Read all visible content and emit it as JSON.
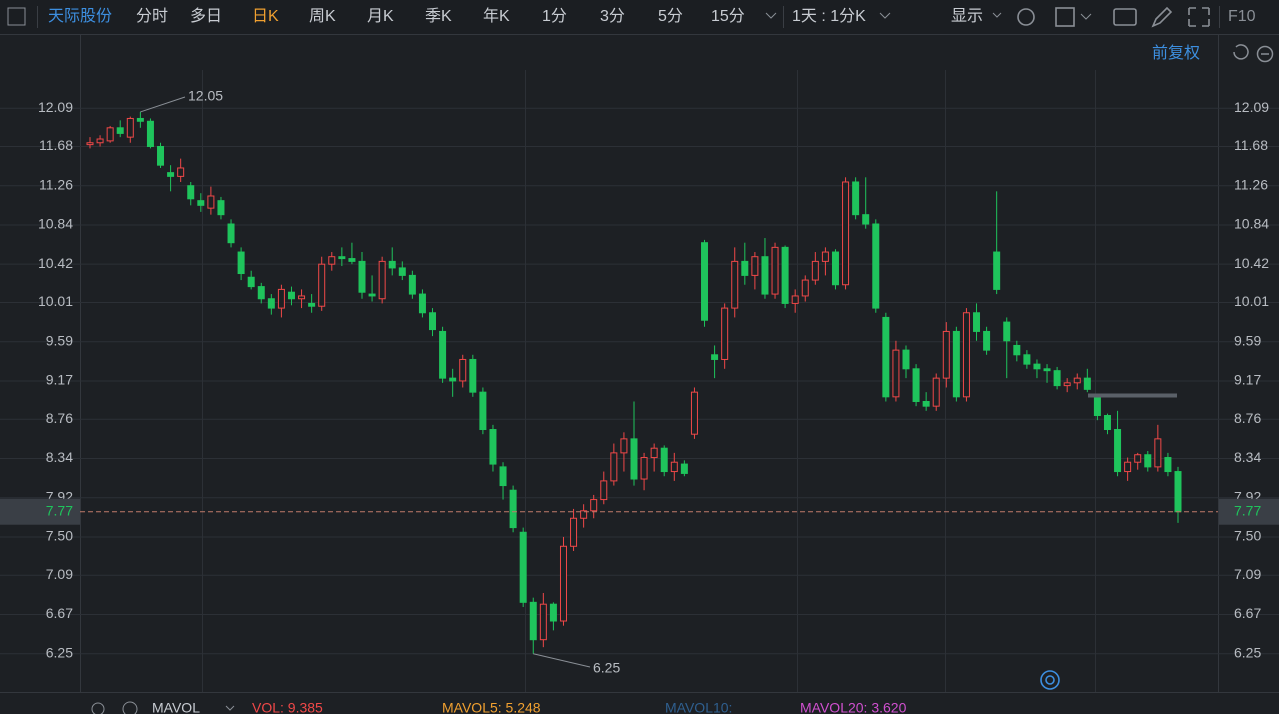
{
  "toolbar": {
    "stock": "天际股份",
    "tabs": [
      "分时",
      "多日",
      "日K",
      "周K",
      "月K",
      "季K",
      "年K",
      "1分",
      "3分",
      "5分",
      "15分"
    ],
    "active_tab": 2,
    "interval": "1天 : 1分K",
    "display": "显示",
    "f10": "F10"
  },
  "adjust": "前复权",
  "chart_data": {
    "type": "candlestick",
    "open": [
      11.7,
      11.72,
      11.74,
      11.88,
      11.78,
      11.98,
      11.95,
      11.68,
      11.4,
      11.36,
      11.26,
      11.1,
      11.02,
      11.1,
      10.85,
      10.55,
      10.28,
      10.18,
      10.05,
      9.95,
      10.12,
      10.05,
      10.0,
      9.97,
      10.42,
      10.5,
      10.48,
      10.45,
      10.1,
      10.05,
      10.45,
      10.38,
      10.3,
      10.1,
      9.9,
      9.7,
      9.2,
      9.17,
      9.4,
      9.05,
      8.65,
      8.25,
      8.0,
      7.55,
      6.8,
      6.4,
      6.78,
      6.6,
      7.4,
      7.7,
      7.78,
      7.9,
      8.1,
      8.4,
      8.55,
      8.12,
      8.35,
      8.45,
      8.2,
      8.28,
      8.6,
      10.65,
      9.45,
      9.4,
      9.95,
      10.45,
      10.3,
      10.5,
      10.1,
      10.6,
      10.0,
      10.08,
      10.25,
      10.45,
      10.55,
      10.2,
      11.3,
      10.95,
      10.85,
      9.85,
      9.0,
      9.5,
      9.3,
      8.95,
      8.9,
      9.2,
      9.7,
      9.0,
      9.9,
      9.7,
      10.55,
      9.8,
      9.55,
      9.45,
      9.35,
      9.3,
      9.28,
      9.12,
      9.15,
      9.2,
      9.0,
      8.8,
      8.65,
      8.2,
      8.3,
      8.38,
      8.25,
      8.35,
      8.2
    ],
    "high": [
      11.78,
      11.8,
      11.9,
      11.96,
      12.0,
      12.05,
      11.98,
      11.72,
      11.48,
      11.55,
      11.3,
      11.18,
      11.25,
      11.14,
      10.9,
      10.6,
      10.35,
      10.22,
      10.1,
      10.2,
      10.18,
      10.15,
      10.1,
      10.5,
      10.55,
      10.6,
      10.65,
      10.55,
      10.3,
      10.5,
      10.6,
      10.45,
      10.35,
      10.15,
      9.95,
      9.75,
      9.3,
      9.45,
      9.45,
      9.1,
      8.7,
      8.3,
      8.05,
      7.6,
      6.85,
      6.9,
      6.8,
      7.5,
      7.8,
      7.85,
      7.95,
      8.2,
      8.5,
      8.62,
      8.95,
      8.4,
      8.5,
      8.48,
      8.4,
      8.32,
      9.1,
      10.68,
      9.55,
      10.0,
      10.6,
      10.65,
      10.55,
      10.7,
      10.65,
      10.62,
      10.15,
      10.3,
      10.55,
      10.6,
      10.58,
      11.35,
      11.35,
      11.35,
      10.9,
      9.9,
      9.6,
      9.55,
      9.35,
      9.05,
      9.25,
      9.8,
      9.75,
      9.95,
      10.0,
      9.75,
      11.2,
      9.85,
      9.6,
      9.5,
      9.4,
      9.35,
      9.32,
      9.2,
      9.25,
      9.3,
      9.02,
      8.82,
      8.85,
      8.35,
      8.4,
      8.42,
      8.7,
      8.4,
      8.25
    ],
    "low": [
      11.66,
      11.68,
      11.72,
      11.78,
      11.72,
      11.88,
      11.66,
      11.45,
      11.2,
      11.3,
      11.05,
      10.98,
      10.95,
      10.9,
      10.6,
      10.25,
      10.15,
      10.0,
      9.88,
      9.85,
      9.98,
      9.95,
      9.9,
      9.92,
      10.35,
      10.4,
      10.42,
      10.05,
      10.02,
      10.0,
      10.3,
      10.25,
      10.05,
      9.85,
      9.65,
      9.15,
      9.0,
      9.1,
      9.0,
      8.6,
      8.2,
      7.9,
      7.55,
      6.75,
      6.25,
      6.32,
      6.5,
      6.55,
      7.35,
      7.6,
      7.7,
      7.85,
      8.05,
      8.2,
      8.05,
      8.0,
      8.2,
      8.15,
      8.1,
      8.15,
      8.55,
      9.75,
      9.2,
      9.3,
      9.85,
      10.2,
      10.15,
      10.05,
      10.05,
      9.95,
      9.9,
      10.02,
      10.2,
      10.3,
      10.15,
      10.15,
      10.9,
      10.8,
      9.9,
      8.95,
      8.95,
      9.2,
      8.9,
      8.85,
      8.85,
      9.1,
      8.95,
      8.95,
      9.6,
      9.45,
      10.1,
      9.2,
      9.38,
      9.3,
      9.2,
      9.15,
      9.08,
      9.05,
      9.08,
      9.05,
      8.75,
      8.6,
      8.15,
      8.1,
      8.22,
      8.2,
      8.2,
      8.15,
      7.65
    ],
    "close": [
      11.72,
      11.76,
      11.88,
      11.82,
      11.98,
      11.95,
      11.68,
      11.48,
      11.36,
      11.45,
      11.12,
      11.05,
      11.15,
      10.95,
      10.65,
      10.32,
      10.18,
      10.05,
      9.95,
      10.15,
      10.05,
      10.08,
      9.97,
      10.42,
      10.5,
      10.48,
      10.45,
      10.12,
      10.08,
      10.45,
      10.38,
      10.3,
      10.1,
      9.9,
      9.72,
      9.2,
      9.17,
      9.4,
      9.05,
      8.65,
      8.28,
      8.05,
      7.6,
      6.8,
      6.4,
      6.78,
      6.6,
      7.4,
      7.7,
      7.78,
      7.9,
      8.1,
      8.4,
      8.55,
      8.12,
      8.35,
      8.45,
      8.2,
      8.3,
      8.18,
      9.05,
      9.82,
      9.4,
      9.95,
      10.45,
      10.3,
      10.5,
      10.1,
      10.6,
      10.0,
      10.08,
      10.25,
      10.45,
      10.55,
      10.2,
      11.3,
      10.95,
      10.85,
      9.95,
      9.0,
      9.5,
      9.3,
      8.95,
      8.9,
      9.2,
      9.7,
      9.0,
      9.9,
      9.7,
      9.5,
      10.15,
      9.6,
      9.45,
      9.35,
      9.3,
      9.28,
      9.12,
      9.15,
      9.2,
      9.08,
      8.8,
      8.65,
      8.2,
      8.3,
      8.38,
      8.25,
      8.55,
      8.2,
      7.77
    ],
    "up_color": "#f04848",
    "down_color": "#1fc45c",
    "ylim": [
      5.84,
      12.82
    ],
    "yticks": [
      12.09,
      11.68,
      11.26,
      10.84,
      10.42,
      10.01,
      9.59,
      9.17,
      8.76,
      8.34,
      7.92,
      {
        "value": 7.5,
        "label": "7.50"
      },
      7.09,
      6.67,
      6.25
    ],
    "last_price": 7.77,
    "max_mark": 12.05,
    "min_mark": 6.25
  },
  "footer": {
    "indicator": "MAVOL",
    "vol": "VOL: 9.385",
    "mavol5": "MAVOL5: 5.248",
    "mavol10": "MAVOL10:",
    "mavol20": "MAVOL20: 3.620"
  }
}
